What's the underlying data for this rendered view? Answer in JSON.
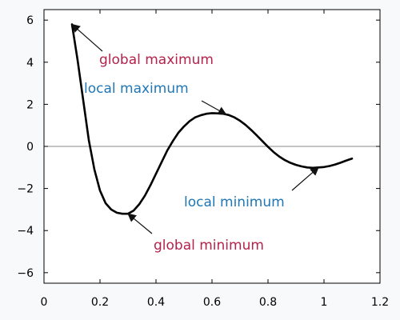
{
  "chart_data": {
    "type": "line",
    "xlim": [
      0,
      1.2
    ],
    "ylim": [
      -6.5,
      6.5
    ],
    "x_ticks": [
      0,
      0.2,
      0.4,
      0.6,
      0.8,
      1,
      1.2
    ],
    "x_tick_labels": [
      "0",
      "0.2",
      "0.4",
      "0.6",
      "0.8",
      "1",
      "1.2"
    ],
    "y_ticks": [
      6,
      4,
      2,
      0,
      -2,
      -4,
      -6
    ],
    "y_tick_labels": [
      "6",
      "4",
      "2",
      "0",
      "−2",
      "−4",
      "−6"
    ],
    "grid": false,
    "zero_line": true,
    "series": [
      {
        "x": [
          0.1,
          0.12,
          0.14,
          0.16,
          0.18,
          0.2,
          0.22,
          0.24,
          0.26,
          0.28,
          0.3,
          0.32,
          0.34,
          0.36,
          0.38,
          0.4,
          0.42,
          0.44,
          0.46,
          0.48,
          0.5,
          0.52,
          0.54,
          0.56,
          0.58,
          0.6,
          0.62,
          0.64,
          0.65,
          0.66,
          0.68,
          0.7,
          0.72,
          0.74,
          0.76,
          0.78,
          0.8,
          0.82,
          0.84,
          0.86,
          0.88,
          0.9,
          0.92,
          0.94,
          0.96,
          0.98,
          1.0,
          1.02,
          1.04,
          1.06,
          1.08,
          1.1
        ],
        "y": [
          5.8,
          4.1,
          2.2,
          0.3,
          -1.1,
          -2.1,
          -2.7,
          -3.0,
          -3.15,
          -3.2,
          -3.2,
          -3.05,
          -2.75,
          -2.35,
          -1.85,
          -1.3,
          -0.75,
          -0.2,
          0.25,
          0.65,
          0.95,
          1.2,
          1.38,
          1.48,
          1.55,
          1.58,
          1.57,
          1.55,
          1.52,
          1.49,
          1.38,
          1.22,
          1.02,
          0.78,
          0.52,
          0.25,
          -0.02,
          -0.27,
          -0.48,
          -0.65,
          -0.78,
          -0.88,
          -0.95,
          -1.0,
          -1.02,
          -1.0,
          -0.98,
          -0.93,
          -0.86,
          -0.77,
          -0.67,
          -0.58
        ]
      }
    ],
    "annotations": [
      {
        "text": "global maximum",
        "color": "#b5224a",
        "point": [
          0.1,
          5.8
        ],
        "anchor": [
          0.2,
          4.8
        ]
      },
      {
        "text": "local maximum",
        "color": "#1f77b4",
        "point": [
          0.65,
          1.52
        ],
        "anchor": [
          0.58,
          2.3
        ]
      },
      {
        "text": "local minimum",
        "color": "#1f77b4",
        "point": [
          0.98,
          -1.0
        ],
        "anchor": [
          0.88,
          -1.85
        ]
      },
      {
        "text": "global minimum",
        "color": "#b5224a",
        "point": [
          0.3,
          -3.2
        ],
        "anchor": [
          0.38,
          -4.8
        ]
      }
    ]
  }
}
